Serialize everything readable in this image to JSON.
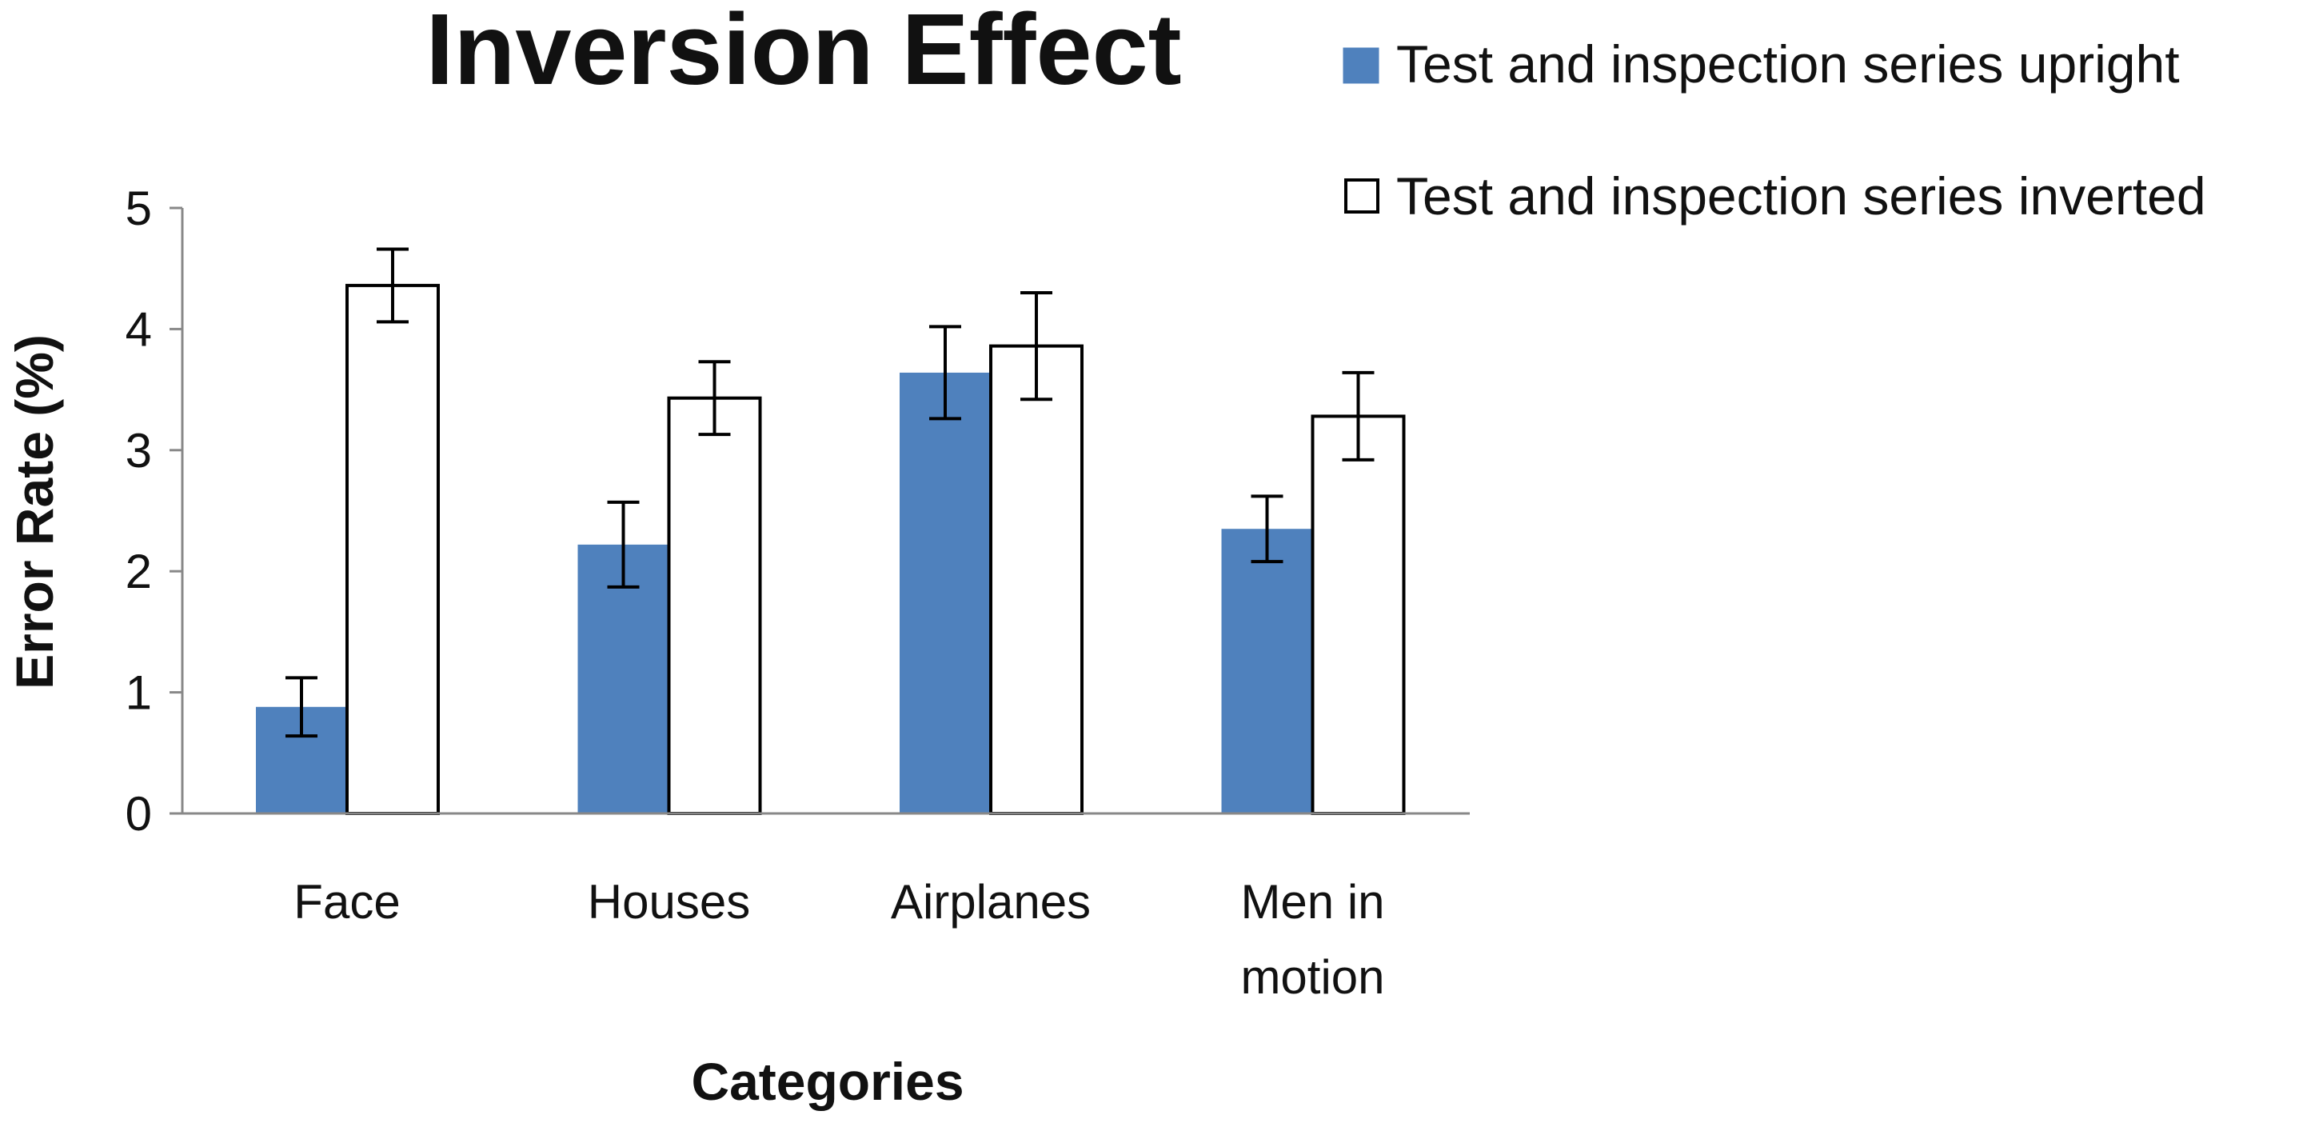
{
  "chart_data": {
    "type": "bar",
    "title": "Inversion Effect",
    "xlabel": "Categories",
    "ylabel": "Error Rate (%)",
    "ylim": [
      0,
      5
    ],
    "yticks": [
      0,
      1,
      2,
      3,
      4,
      5
    ],
    "grid": false,
    "legend_position": "top-right",
    "categories": [
      {
        "lines": [
          "Face"
        ]
      },
      {
        "lines": [
          "Houses"
        ]
      },
      {
        "lines": [
          "Airplanes"
        ]
      },
      {
        "lines": [
          "Men in",
          "motion"
        ]
      }
    ],
    "series": [
      {
        "name": "Test and inspection series upright",
        "fill": "#4f81bd",
        "stroke": "#4f81bd",
        "values": [
          0.88,
          2.22,
          3.64,
          2.35
        ],
        "error": [
          0.24,
          0.35,
          0.38,
          0.27
        ]
      },
      {
        "name": "Test and inspection series inverted",
        "fill": "#ffffff",
        "stroke": "#000000",
        "values": [
          4.36,
          3.43,
          3.86,
          3.28
        ],
        "error": [
          0.3,
          0.3,
          0.44,
          0.36
        ]
      }
    ]
  }
}
